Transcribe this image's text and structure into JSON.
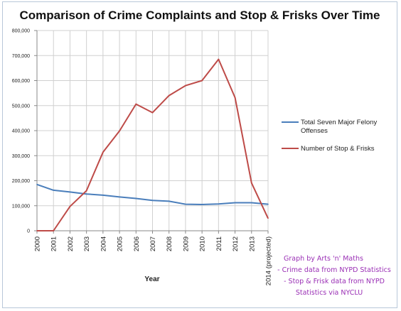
{
  "chart_data": {
    "type": "line",
    "title": "Comparison of Crime Complaints and Stop & Frisks Over Time",
    "xlabel": "Year",
    "ylabel": "",
    "categories": [
      "2000",
      "2001",
      "2002",
      "2003",
      "2004",
      "2005",
      "2006",
      "2007",
      "2008",
      "2009",
      "2010",
      "2011",
      "2012",
      "2013",
      "2014 (projected)"
    ],
    "ylim": [
      0,
      800000
    ],
    "yticks": [
      "0",
      "100,000",
      "200,000",
      "300,000",
      "400,000",
      "500,000",
      "600,000",
      "700,000",
      "800,000"
    ],
    "grid": true,
    "legend_position": "right",
    "series": [
      {
        "name": "Total Seven Major Felony Offenses",
        "color": "#4a7ebb",
        "values": [
          185000,
          162000,
          155000,
          147000,
          142000,
          135000,
          129000,
          121000,
          118000,
          106000,
          105000,
          107000,
          112000,
          112000,
          106000
        ]
      },
      {
        "name": "Number of Stop & Frisks",
        "color": "#be4b48",
        "values": [
          0,
          0,
          97000,
          160000,
          314000,
          399000,
          506000,
          472000,
          540000,
          580000,
          600000,
          685000,
          532000,
          191000,
          50000
        ]
      }
    ]
  },
  "credits": [
    "Graph by Arts 'n' Maths",
    "- Crime data from NYPD Statistics",
    "- Stop & Frisk data from NYPD",
    "Statistics via NYCLU"
  ]
}
